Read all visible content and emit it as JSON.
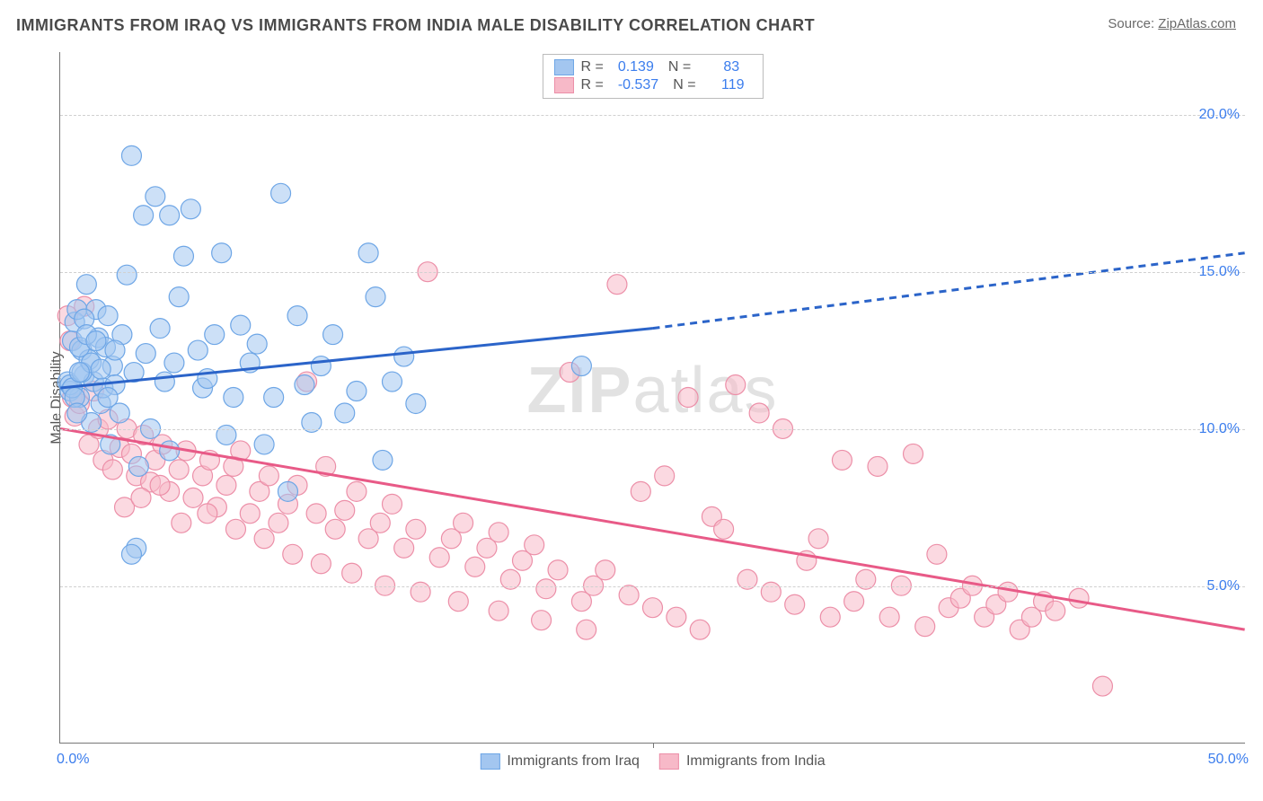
{
  "header": {
    "title": "IMMIGRANTS FROM IRAQ VS IMMIGRANTS FROM INDIA MALE DISABILITY CORRELATION CHART",
    "source_prefix": "Source: ",
    "source_name": "ZipAtlas.com"
  },
  "chart": {
    "type": "scatter",
    "y_axis_title": "Male Disability",
    "x_range": [
      0,
      50
    ],
    "y_range": [
      0,
      22
    ],
    "y_ticks": [
      5.0,
      10.0,
      15.0,
      20.0
    ],
    "y_tick_labels": [
      "5.0%",
      "10.0%",
      "15.0%",
      "20.0%"
    ],
    "x_ticks": [
      0,
      50
    ],
    "x_tick_labels": [
      "0.0%",
      "50.0%"
    ],
    "x_mid_tick": 25,
    "grid_color": "#d0d0d0",
    "axis_color": "#777777",
    "background_color": "#ffffff",
    "watermark": "ZIPatlas",
    "series": [
      {
        "id": "iraq",
        "label": "Immigrants from Iraq",
        "fill_color": "#a3c6f0",
        "stroke_color": "#6ea6e6",
        "line_color": "#2b64c9",
        "opacity": 0.55,
        "marker_radius": 11,
        "R": 0.139,
        "N": 83,
        "trend": {
          "x1": 0,
          "y1": 11.3,
          "x2": 25,
          "y2": 13.2,
          "x3": 50,
          "y3": 15.6,
          "dash_after": 25
        },
        "points": [
          [
            0.3,
            11.5
          ],
          [
            0.4,
            11.2
          ],
          [
            0.5,
            12.8
          ],
          [
            0.6,
            13.4
          ],
          [
            0.7,
            13.8
          ],
          [
            0.8,
            11.0
          ],
          [
            0.9,
            12.5
          ],
          [
            1.0,
            11.7
          ],
          [
            1.1,
            14.6
          ],
          [
            1.2,
            12.2
          ],
          [
            1.3,
            10.2
          ],
          [
            1.4,
            11.5
          ],
          [
            1.5,
            13.8
          ],
          [
            1.6,
            12.9
          ],
          [
            1.7,
            10.8
          ],
          [
            1.8,
            11.3
          ],
          [
            1.9,
            12.6
          ],
          [
            2.0,
            13.6
          ],
          [
            2.1,
            9.5
          ],
          [
            2.2,
            12.0
          ],
          [
            2.3,
            11.4
          ],
          [
            2.5,
            10.5
          ],
          [
            2.6,
            13.0
          ],
          [
            2.8,
            14.9
          ],
          [
            3.0,
            18.7
          ],
          [
            3.1,
            11.8
          ],
          [
            3.3,
            8.8
          ],
          [
            3.5,
            16.8
          ],
          [
            3.6,
            12.4
          ],
          [
            3.8,
            10.0
          ],
          [
            4.0,
            17.4
          ],
          [
            4.2,
            13.2
          ],
          [
            4.4,
            11.5
          ],
          [
            4.6,
            9.3
          ],
          [
            4.8,
            12.1
          ],
          [
            5.0,
            14.2
          ],
          [
            5.2,
            15.5
          ],
          [
            5.5,
            17.0
          ],
          [
            5.8,
            12.5
          ],
          [
            6.0,
            11.3
          ],
          [
            6.2,
            11.6
          ],
          [
            6.5,
            13.0
          ],
          [
            6.8,
            15.6
          ],
          [
            7.0,
            9.8
          ],
          [
            7.3,
            11.0
          ],
          [
            7.6,
            13.3
          ],
          [
            8.0,
            12.1
          ],
          [
            8.3,
            12.7
          ],
          [
            8.6,
            9.5
          ],
          [
            9.0,
            11.0
          ],
          [
            9.3,
            17.5
          ],
          [
            9.6,
            8.0
          ],
          [
            10.0,
            13.6
          ],
          [
            10.3,
            11.4
          ],
          [
            10.6,
            10.2
          ],
          [
            11.0,
            12.0
          ],
          [
            11.5,
            13.0
          ],
          [
            12.0,
            10.5
          ],
          [
            12.5,
            11.2
          ],
          [
            13.0,
            15.6
          ],
          [
            13.3,
            14.2
          ],
          [
            13.6,
            9.0
          ],
          [
            14.0,
            11.5
          ],
          [
            14.5,
            12.3
          ],
          [
            15.0,
            10.8
          ],
          [
            3.2,
            6.2
          ],
          [
            3.0,
            6.0
          ],
          [
            4.6,
            16.8
          ],
          [
            22.0,
            12.0
          ],
          [
            0.4,
            11.4
          ],
          [
            0.5,
            11.3
          ],
          [
            0.8,
            12.6
          ],
          [
            0.9,
            11.8
          ],
          [
            1.0,
            13.5
          ],
          [
            1.1,
            13.0
          ],
          [
            1.3,
            12.1
          ],
          [
            1.5,
            12.8
          ],
          [
            1.7,
            11.9
          ],
          [
            2.0,
            11.0
          ],
          [
            2.3,
            12.5
          ],
          [
            0.6,
            11.0
          ],
          [
            0.7,
            10.5
          ],
          [
            0.8,
            11.8
          ]
        ]
      },
      {
        "id": "india",
        "label": "Immigrants from India",
        "fill_color": "#f7b9c8",
        "stroke_color": "#ec8fa8",
        "line_color": "#e85a87",
        "opacity": 0.55,
        "marker_radius": 11,
        "R": -0.537,
        "N": 119,
        "trend": {
          "x1": 0,
          "y1": 10.0,
          "x2": 50,
          "y2": 3.6
        },
        "points": [
          [
            0.3,
            13.6
          ],
          [
            0.4,
            12.8
          ],
          [
            0.5,
            11.0
          ],
          [
            0.6,
            10.4
          ],
          [
            0.8,
            10.8
          ],
          [
            1.0,
            13.9
          ],
          [
            1.2,
            9.5
          ],
          [
            1.4,
            11.2
          ],
          [
            1.6,
            10.0
          ],
          [
            1.8,
            9.0
          ],
          [
            2.0,
            10.3
          ],
          [
            2.2,
            8.7
          ],
          [
            2.5,
            9.4
          ],
          [
            2.8,
            10.0
          ],
          [
            3.0,
            9.2
          ],
          [
            3.2,
            8.5
          ],
          [
            3.5,
            9.8
          ],
          [
            3.8,
            8.3
          ],
          [
            4.0,
            9.0
          ],
          [
            4.3,
            9.5
          ],
          [
            4.6,
            8.0
          ],
          [
            5.0,
            8.7
          ],
          [
            5.3,
            9.3
          ],
          [
            5.6,
            7.8
          ],
          [
            6.0,
            8.5
          ],
          [
            6.3,
            9.0
          ],
          [
            6.6,
            7.5
          ],
          [
            7.0,
            8.2
          ],
          [
            7.3,
            8.8
          ],
          [
            7.6,
            9.3
          ],
          [
            8.0,
            7.3
          ],
          [
            8.4,
            8.0
          ],
          [
            8.8,
            8.5
          ],
          [
            9.2,
            7.0
          ],
          [
            9.6,
            7.6
          ],
          [
            10.0,
            8.2
          ],
          [
            10.4,
            11.5
          ],
          [
            10.8,
            7.3
          ],
          [
            11.2,
            8.8
          ],
          [
            11.6,
            6.8
          ],
          [
            12.0,
            7.4
          ],
          [
            12.5,
            8.0
          ],
          [
            13.0,
            6.5
          ],
          [
            13.5,
            7.0
          ],
          [
            14.0,
            7.6
          ],
          [
            14.5,
            6.2
          ],
          [
            15.0,
            6.8
          ],
          [
            15.5,
            15.0
          ],
          [
            16.0,
            5.9
          ],
          [
            16.5,
            6.5
          ],
          [
            17.0,
            7.0
          ],
          [
            17.5,
            5.6
          ],
          [
            18.0,
            6.2
          ],
          [
            18.5,
            6.7
          ],
          [
            19.0,
            5.2
          ],
          [
            19.5,
            5.8
          ],
          [
            20.0,
            6.3
          ],
          [
            20.5,
            4.9
          ],
          [
            21.0,
            5.5
          ],
          [
            21.5,
            11.8
          ],
          [
            22.0,
            4.5
          ],
          [
            22.5,
            5.0
          ],
          [
            23.0,
            5.5
          ],
          [
            23.5,
            14.6
          ],
          [
            24.0,
            4.7
          ],
          [
            24.5,
            8.0
          ],
          [
            25.0,
            4.3
          ],
          [
            25.5,
            8.5
          ],
          [
            26.0,
            4.0
          ],
          [
            26.5,
            11.0
          ],
          [
            27.0,
            3.6
          ],
          [
            27.5,
            7.2
          ],
          [
            28.0,
            6.8
          ],
          [
            28.5,
            11.4
          ],
          [
            29.0,
            5.2
          ],
          [
            29.5,
            10.5
          ],
          [
            30.0,
            4.8
          ],
          [
            30.5,
            10.0
          ],
          [
            31.0,
            4.4
          ],
          [
            31.5,
            5.8
          ],
          [
            32.0,
            6.5
          ],
          [
            32.5,
            4.0
          ],
          [
            33.0,
            9.0
          ],
          [
            33.5,
            4.5
          ],
          [
            34.0,
            5.2
          ],
          [
            34.5,
            8.8
          ],
          [
            35.0,
            4.0
          ],
          [
            35.5,
            5.0
          ],
          [
            36.0,
            9.2
          ],
          [
            36.5,
            3.7
          ],
          [
            37.0,
            6.0
          ],
          [
            37.5,
            4.3
          ],
          [
            38.0,
            4.6
          ],
          [
            38.5,
            5.0
          ],
          [
            39.0,
            4.0
          ],
          [
            39.5,
            4.4
          ],
          [
            40.0,
            4.8
          ],
          [
            40.5,
            3.6
          ],
          [
            41.0,
            4.0
          ],
          [
            41.5,
            4.5
          ],
          [
            42.0,
            4.2
          ],
          [
            43.0,
            4.6
          ],
          [
            44.0,
            1.8
          ],
          [
            2.7,
            7.5
          ],
          [
            3.4,
            7.8
          ],
          [
            4.2,
            8.2
          ],
          [
            5.1,
            7.0
          ],
          [
            6.2,
            7.3
          ],
          [
            7.4,
            6.8
          ],
          [
            8.6,
            6.5
          ],
          [
            9.8,
            6.0
          ],
          [
            11.0,
            5.7
          ],
          [
            12.3,
            5.4
          ],
          [
            13.7,
            5.0
          ],
          [
            15.2,
            4.8
          ],
          [
            16.8,
            4.5
          ],
          [
            18.5,
            4.2
          ],
          [
            20.3,
            3.9
          ],
          [
            22.2,
            3.6
          ]
        ]
      }
    ],
    "legend_top": {
      "R_label": "R =",
      "N_label": "N ="
    },
    "legend_bottom_labels": [
      "Immigrants from Iraq",
      "Immigrants from India"
    ]
  }
}
